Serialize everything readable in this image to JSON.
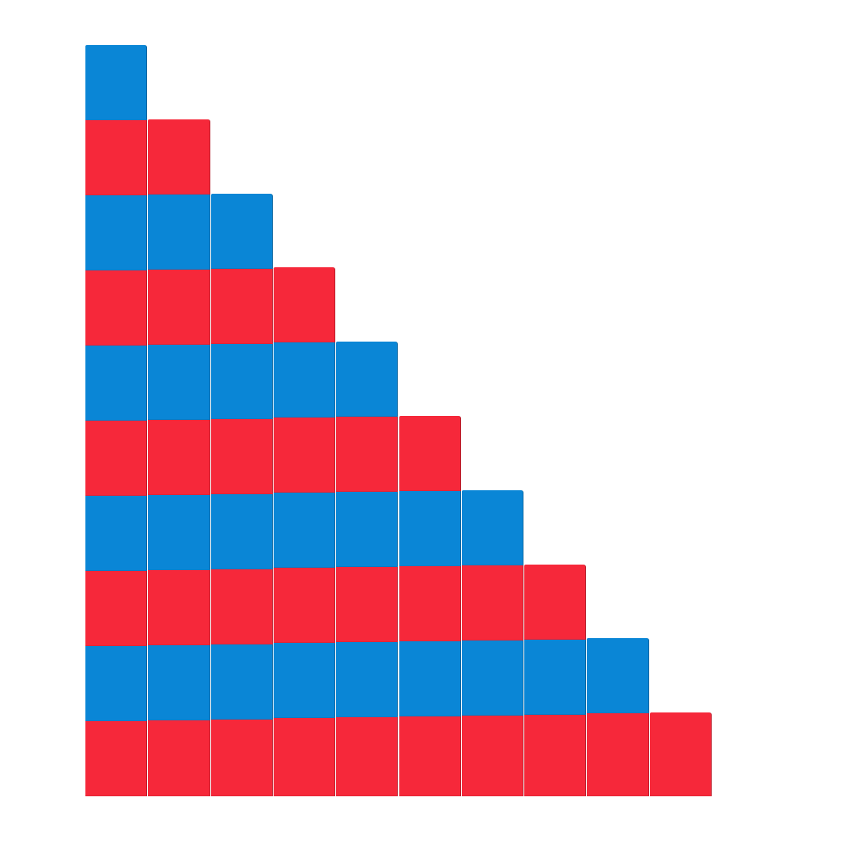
{
  "scene": {
    "subject": "number-rods-staircase",
    "rod_lengths": [
      10,
      9,
      8,
      7,
      6,
      5,
      4,
      3,
      2,
      1
    ],
    "top_row_color": "blue",
    "colors": {
      "blue": "#0a86d6",
      "red": "#f6283a",
      "background": "#ffffff"
    }
  }
}
